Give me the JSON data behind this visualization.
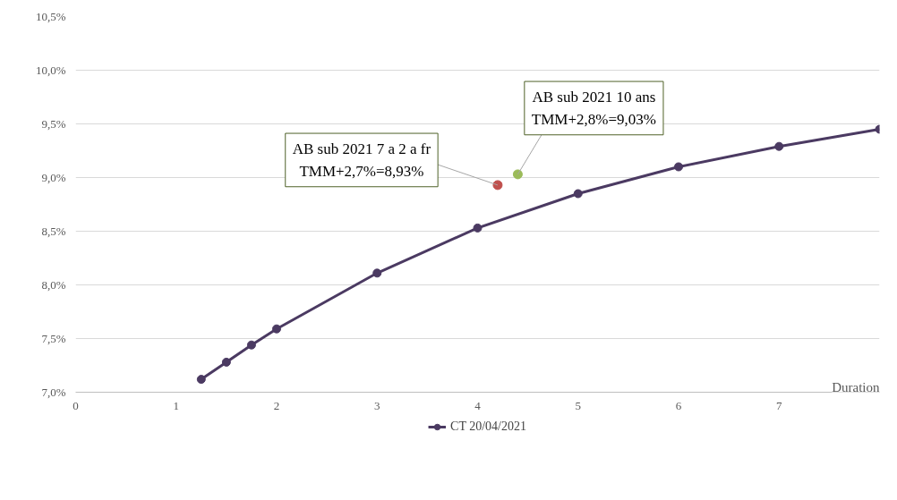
{
  "chart_data": {
    "type": "line",
    "xlabel": "Duration",
    "xlim": [
      0,
      8
    ],
    "xticks": [
      0,
      1,
      2,
      3,
      4,
      5,
      6,
      7
    ],
    "ylim": [
      7.0,
      10.5
    ],
    "yticks": [
      {
        "value": 7.0,
        "label": "7,0%"
      },
      {
        "value": 7.5,
        "label": "7,5%"
      },
      {
        "value": 8.0,
        "label": "8,0%"
      },
      {
        "value": 8.5,
        "label": "8,5%"
      },
      {
        "value": 9.0,
        "label": "9,0%"
      },
      {
        "value": 9.5,
        "label": "9,5%"
      },
      {
        "value": 10.0,
        "label": "10,0%"
      },
      {
        "value": 10.5,
        "label": "10,5%"
      }
    ],
    "grid": "y",
    "legend": "bottom",
    "marker": "circle",
    "line_style": "solid",
    "series": [
      {
        "name": "CT 20/04/2021",
        "color": "#4b3a62",
        "x": [
          1.25,
          1.5,
          1.75,
          2,
          3,
          4,
          5,
          6,
          7,
          8
        ],
        "values": [
          7.12,
          7.28,
          7.44,
          7.59,
          8.11,
          8.53,
          8.85,
          9.1,
          9.29,
          9.45
        ]
      },
      {
        "type": "scatter",
        "color": "#c0504d",
        "x": [
          4.2
        ],
        "values": [
          8.93
        ]
      },
      {
        "type": "scatter",
        "color": "#9bbb59",
        "x": [
          4.4
        ],
        "values": [
          9.03
        ]
      }
    ],
    "annotations": [
      {
        "text": "AB sub 2021 7 a 2 a fr\nTMM+2,7%=8,93%",
        "x": 4.2,
        "y": 8.93
      },
      {
        "text": "AB sub 2021 10 ans\nTMM+2,8%=9,03%",
        "x": 4.4,
        "y": 9.03
      }
    ]
  }
}
